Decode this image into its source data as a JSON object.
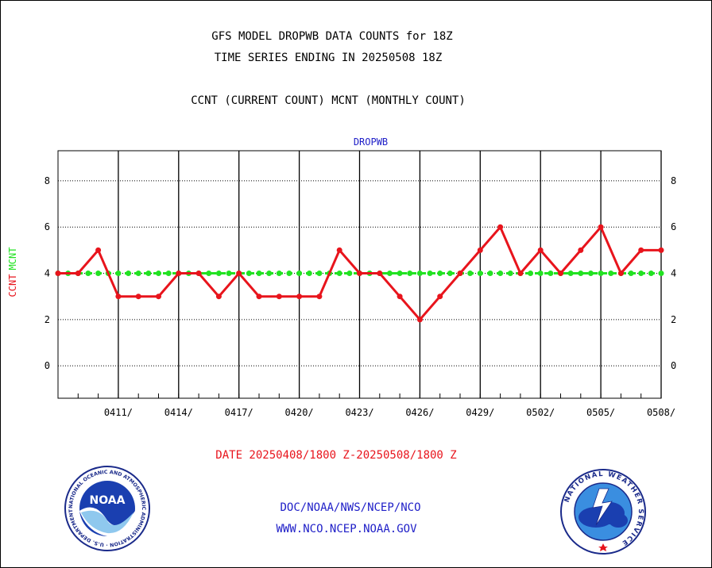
{
  "header": {
    "title_line1": "GFS MODEL DROPWB DATA COUNTS for 18Z",
    "title_line2": "TIME SERIES ENDING IN 20250508 18Z",
    "subtitle": "CCNT (CURRENT COUNT) MCNT (MONTHLY COUNT)"
  },
  "footer": {
    "date_range": "DATE 20250408/1800 Z-20250508/1800 Z",
    "org_path": "DOC/NOAA/NWS/NCEP/NCO",
    "website": "WWW.NCO.NCEP.NOAA.GOV"
  },
  "logos": {
    "noaa": {
      "center_text": "NOAA",
      "ring_text": "NATIONAL OCEANIC AND ATMOSPHERIC ADMINISTRATION · U.S. DEPARTMENT OF COMMERCE"
    },
    "nws": {
      "ring_text": "NATIONAL WEATHER SERVICE"
    }
  },
  "colors": {
    "ccnt": "#e8141c",
    "mcnt": "#22e222",
    "chart_title": "#2020c8",
    "footer_red": "#e8141c",
    "footer_blue": "#2020c8"
  },
  "chart_data": {
    "type": "line",
    "title": "DROPWB",
    "ylabel_left": "CCNT",
    "ylabel_right": "MCNT",
    "ylim": [
      -1.4,
      9.3
    ],
    "yticks": [
      0,
      2,
      4,
      6,
      8
    ],
    "grid": true,
    "x_tick_labels": [
      "0411/",
      "0414/",
      "0417/",
      "0420/",
      "0423/",
      "0426/",
      "0429/",
      "0502/",
      "0505/",
      "0508/"
    ],
    "x_tick_days": [
      3,
      6,
      9,
      12,
      15,
      18,
      21,
      24,
      27,
      30
    ],
    "x_start": "2025-04-08",
    "series": [
      {
        "name": "CCNT",
        "values": [
          4,
          4,
          5,
          3,
          3,
          3,
          4,
          4,
          3,
          4,
          3,
          3,
          3,
          3,
          5,
          4,
          4,
          3,
          2,
          3,
          4,
          5,
          6,
          4,
          5,
          4,
          5,
          6,
          4,
          5,
          5
        ]
      },
      {
        "name": "MCNT",
        "values": [
          4,
          4,
          4,
          4,
          4,
          4,
          4,
          4,
          4,
          4,
          4,
          4,
          4,
          4,
          4,
          4,
          4,
          4,
          4,
          4,
          4,
          4,
          4,
          4,
          4,
          4,
          4,
          4,
          4,
          4,
          4,
          4,
          4,
          4,
          4,
          4,
          4,
          4,
          4,
          4,
          4,
          4,
          4,
          4,
          4,
          4,
          4,
          4,
          4,
          4,
          4,
          4,
          4,
          4,
          4,
          4,
          4,
          4,
          4,
          4,
          4
        ]
      }
    ]
  }
}
